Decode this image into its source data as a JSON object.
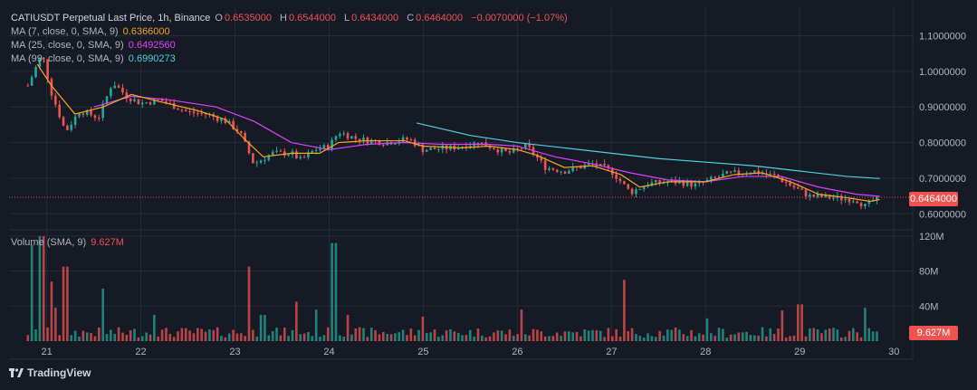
{
  "header": {
    "symbol_line": "CATIUSDT Perpetual Last Price, 1h, Binance",
    "o_label": "O",
    "o_value": "0.6535000",
    "h_label": "H",
    "h_value": "0.6544000",
    "l_label": "L",
    "l_value": "0.6434000",
    "c_label": "C",
    "c_value": "0.6464000",
    "change": "−0.0070000 (−1.07%)"
  },
  "indicators": [
    {
      "label": "MA (7, close, 0, SMA, 9)",
      "value": "0.6366000",
      "color": "#f5a623"
    },
    {
      "label": "MA (25, close, 0, SMA, 9)",
      "value": "0.6492560",
      "color": "#e040fb"
    },
    {
      "label": "MA (99, close, 0, SMA, 9)",
      "value": "0.6990273",
      "color": "#4dd0e1"
    }
  ],
  "volume_legend": {
    "label": "Volume (SMA, 9)",
    "value": "9.627M"
  },
  "price_tag": "0.6464000",
  "volume_tag": "9.627M",
  "brand": "TradingView",
  "colors": {
    "up": "#26a69a",
    "down": "#ef5350",
    "grid": "#262a36",
    "bg": "#161a25"
  },
  "chart_data": {
    "type": "candlestick",
    "price_axis": {
      "ticks": [
        "1.1000000",
        "1.0000000",
        "0.9000000",
        "0.8000000",
        "0.7000000",
        "0.6000000"
      ],
      "range": [
        0.56,
        1.18
      ]
    },
    "volume_axis": {
      "ticks": [
        "120M",
        "80M",
        "40M"
      ],
      "range": [
        0,
        125
      ]
    },
    "x_ticks": [
      "21",
      "22",
      "23",
      "24",
      "25",
      "26",
      "27",
      "28",
      "29",
      "30"
    ],
    "x_range": [
      20.6,
      30.2
    ],
    "last_price": 0.6464,
    "last_x": 29.82,
    "candle_anchors": [
      [
        20.8,
        0.96
      ],
      [
        20.95,
        1.05
      ],
      [
        21.05,
        0.94
      ],
      [
        21.2,
        0.83
      ],
      [
        21.35,
        0.89
      ],
      [
        21.55,
        0.87
      ],
      [
        21.7,
        0.97
      ],
      [
        21.85,
        0.93
      ],
      [
        22.0,
        0.91
      ],
      [
        22.2,
        0.92
      ],
      [
        22.5,
        0.885
      ],
      [
        22.7,
        0.88
      ],
      [
        22.9,
        0.86
      ],
      [
        23.05,
        0.83
      ],
      [
        23.2,
        0.74
      ],
      [
        23.4,
        0.77
      ],
      [
        23.6,
        0.77
      ],
      [
        23.7,
        0.75
      ],
      [
        23.85,
        0.78
      ],
      [
        24.0,
        0.79
      ],
      [
        24.1,
        0.83
      ],
      [
        24.3,
        0.81
      ],
      [
        24.6,
        0.8
      ],
      [
        24.85,
        0.81
      ],
      [
        25.0,
        0.78
      ],
      [
        25.3,
        0.785
      ],
      [
        25.6,
        0.8
      ],
      [
        25.9,
        0.77
      ],
      [
        26.1,
        0.79
      ],
      [
        26.3,
        0.73
      ],
      [
        26.5,
        0.72
      ],
      [
        26.8,
        0.74
      ],
      [
        27.0,
        0.72
      ],
      [
        27.2,
        0.66
      ],
      [
        27.4,
        0.685
      ],
      [
        27.7,
        0.69
      ],
      [
        27.9,
        0.68
      ],
      [
        28.2,
        0.71
      ],
      [
        28.5,
        0.72
      ],
      [
        28.75,
        0.705
      ],
      [
        28.9,
        0.68
      ],
      [
        29.1,
        0.65
      ],
      [
        29.35,
        0.645
      ],
      [
        29.6,
        0.64
      ],
      [
        29.7,
        0.62
      ],
      [
        29.82,
        0.6464
      ]
    ],
    "ma7_path": [
      [
        20.9,
        1.02
      ],
      [
        21.05,
        0.96
      ],
      [
        21.3,
        0.88
      ],
      [
        21.6,
        0.9
      ],
      [
        21.9,
        0.935
      ],
      [
        22.2,
        0.915
      ],
      [
        22.6,
        0.89
      ],
      [
        22.9,
        0.865
      ],
      [
        23.1,
        0.81
      ],
      [
        23.3,
        0.76
      ],
      [
        23.6,
        0.77
      ],
      [
        23.9,
        0.77
      ],
      [
        24.1,
        0.8
      ],
      [
        24.4,
        0.805
      ],
      [
        24.8,
        0.805
      ],
      [
        25.0,
        0.79
      ],
      [
        25.4,
        0.785
      ],
      [
        25.7,
        0.79
      ],
      [
        26.0,
        0.78
      ],
      [
        26.2,
        0.765
      ],
      [
        26.5,
        0.73
      ],
      [
        26.8,
        0.735
      ],
      [
        27.1,
        0.71
      ],
      [
        27.3,
        0.675
      ],
      [
        27.6,
        0.69
      ],
      [
        28.0,
        0.69
      ],
      [
        28.3,
        0.71
      ],
      [
        28.6,
        0.715
      ],
      [
        28.9,
        0.69
      ],
      [
        29.2,
        0.655
      ],
      [
        29.5,
        0.645
      ],
      [
        29.75,
        0.635
      ],
      [
        29.85,
        0.64
      ]
    ],
    "ma25_path": [
      [
        21.5,
        0.9
      ],
      [
        21.9,
        0.93
      ],
      [
        22.3,
        0.92
      ],
      [
        22.8,
        0.9
      ],
      [
        23.2,
        0.86
      ],
      [
        23.6,
        0.8
      ],
      [
        24.0,
        0.78
      ],
      [
        24.4,
        0.795
      ],
      [
        24.8,
        0.8
      ],
      [
        25.2,
        0.795
      ],
      [
        25.7,
        0.795
      ],
      [
        26.0,
        0.79
      ],
      [
        26.4,
        0.76
      ],
      [
        26.8,
        0.74
      ],
      [
        27.2,
        0.715
      ],
      [
        27.6,
        0.695
      ],
      [
        28.0,
        0.69
      ],
      [
        28.4,
        0.705
      ],
      [
        28.8,
        0.705
      ],
      [
        29.2,
        0.675
      ],
      [
        29.6,
        0.655
      ],
      [
        29.85,
        0.649
      ]
    ],
    "ma99_path": [
      [
        24.93,
        0.855
      ],
      [
        25.5,
        0.82
      ],
      [
        26.0,
        0.8
      ],
      [
        26.5,
        0.785
      ],
      [
        27.0,
        0.77
      ],
      [
        27.5,
        0.755
      ],
      [
        28.0,
        0.745
      ],
      [
        28.5,
        0.735
      ],
      [
        29.0,
        0.72
      ],
      [
        29.5,
        0.705
      ],
      [
        29.85,
        0.699
      ]
    ],
    "volume_spikes": [
      [
        20.85,
        110
      ],
      [
        20.95,
        120
      ],
      [
        21.05,
        68
      ],
      [
        21.1,
        38
      ],
      [
        21.2,
        85
      ],
      [
        21.6,
        60
      ],
      [
        22.15,
        30
      ],
      [
        23.15,
        85
      ],
      [
        23.3,
        30
      ],
      [
        23.65,
        45
      ],
      [
        23.85,
        36
      ],
      [
        24.05,
        112
      ],
      [
        24.2,
        30
      ],
      [
        25.0,
        28
      ],
      [
        26.05,
        36
      ],
      [
        27.15,
        70
      ],
      [
        28.0,
        26
      ],
      [
        28.8,
        35
      ],
      [
        29.0,
        42
      ],
      [
        29.7,
        38
      ]
    ]
  }
}
